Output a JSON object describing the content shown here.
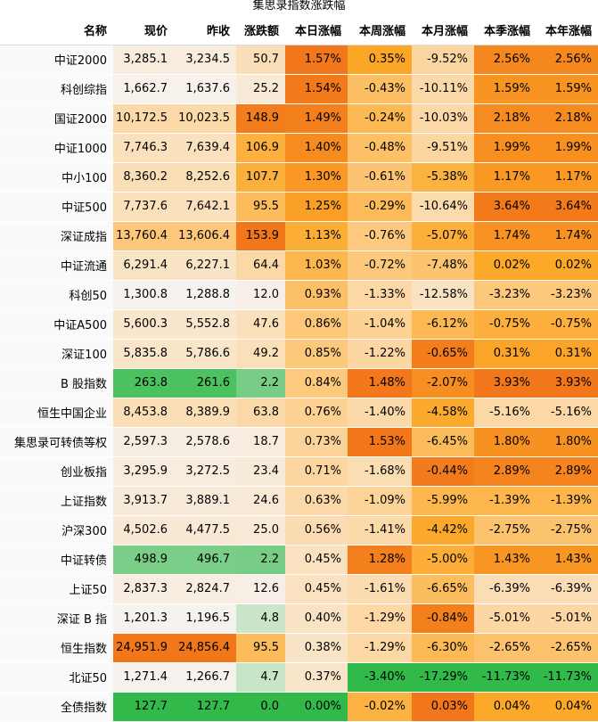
{
  "title": "集思录指数涨跌幅",
  "table": {
    "header": [
      "名称",
      "现价",
      "昨收",
      "涨跌额",
      "本日涨幅",
      "本周涨幅",
      "本月涨幅",
      "本季涨幅",
      "本年涨幅"
    ],
    "rows": [
      [
        "中证2000",
        "3,285.1",
        "3,234.5",
        "50.7",
        "1.57%",
        "0.35%",
        "-9.52%",
        "2.56%",
        "2.56%"
      ],
      [
        "科创综指",
        "1,662.7",
        "1,637.6",
        "25.2",
        "1.54%",
        "-0.43%",
        "-10.11%",
        "1.59%",
        "1.59%"
      ],
      [
        "国证2000",
        "10,172.5",
        "10,023.5",
        "148.9",
        "1.49%",
        "-0.24%",
        "-10.03%",
        "2.18%",
        "2.18%"
      ],
      [
        "中证1000",
        "7,746.3",
        "7,639.4",
        "106.9",
        "1.40%",
        "-0.48%",
        "-9.51%",
        "1.99%",
        "1.99%"
      ],
      [
        "中小100",
        "8,360.2",
        "8,252.6",
        "107.7",
        "1.30%",
        "-0.61%",
        "-5.38%",
        "1.17%",
        "1.17%"
      ],
      [
        "中证500",
        "7,737.6",
        "7,642.1",
        "95.5",
        "1.25%",
        "-0.29%",
        "-10.64%",
        "3.64%",
        "3.64%"
      ],
      [
        "深证成指",
        "13,760.4",
        "13,606.4",
        "153.9",
        "1.13%",
        "-0.76%",
        "-5.07%",
        "1.74%",
        "1.74%"
      ],
      [
        "中证流通",
        "6,291.4",
        "6,227.1",
        "64.4",
        "1.03%",
        "-0.72%",
        "-7.48%",
        "0.02%",
        "0.02%"
      ],
      [
        "科创50",
        "1,300.8",
        "1,288.8",
        "12.0",
        "0.93%",
        "-1.33%",
        "-12.58%",
        "-3.23%",
        "-3.23%"
      ],
      [
        "中证A500",
        "5,600.3",
        "5,552.8",
        "47.6",
        "0.86%",
        "-1.04%",
        "-6.12%",
        "-0.75%",
        "-0.75%"
      ],
      [
        "深证100",
        "5,835.8",
        "5,786.6",
        "49.2",
        "0.85%",
        "-1.22%",
        "-0.65%",
        "0.31%",
        "0.31%"
      ],
      [
        "B 股指数",
        "263.8",
        "261.6",
        "2.2",
        "0.84%",
        "1.48%",
        "-2.07%",
        "3.93%",
        "3.93%"
      ],
      [
        "恒生中国企业",
        "8,453.8",
        "8,389.9",
        "63.8",
        "0.76%",
        "-1.40%",
        "-4.58%",
        "-5.16%",
        "-5.16%"
      ],
      [
        "集思录可转债等权",
        "2,597.3",
        "2,578.6",
        "18.7",
        "0.73%",
        "1.53%",
        "-6.45%",
        "1.80%",
        "1.80%"
      ],
      [
        "创业板指",
        "3,295.9",
        "3,272.5",
        "23.4",
        "0.71%",
        "-1.68%",
        "-0.44%",
        "2.89%",
        "2.89%"
      ],
      [
        "上证指数",
        "3,913.7",
        "3,889.1",
        "24.6",
        "0.63%",
        "-1.09%",
        "-5.99%",
        "-1.39%",
        "-1.39%"
      ],
      [
        "沪深300",
        "4,502.6",
        "4,477.5",
        "25.0",
        "0.56%",
        "-1.41%",
        "-4.42%",
        "-2.75%",
        "-2.75%"
      ],
      [
        "中证转债",
        "498.9",
        "496.7",
        "2.2",
        "0.45%",
        "1.28%",
        "-5.00%",
        "1.43%",
        "1.43%"
      ],
      [
        "上证50",
        "2,837.3",
        "2,824.7",
        "12.6",
        "0.45%",
        "-1.61%",
        "-6.65%",
        "-6.39%",
        "-6.39%"
      ],
      [
        "深证 B 指",
        "1,201.3",
        "1,196.5",
        "4.8",
        "0.40%",
        "-1.29%",
        "-0.84%",
        "-5.01%",
        "-5.01%"
      ],
      [
        "恒生指数",
        "24,951.9",
        "24,856.4",
        "95.5",
        "0.38%",
        "-1.29%",
        "-6.30%",
        "-2.65%",
        "-2.65%"
      ],
      [
        "北证50",
        "1,271.4",
        "1,266.7",
        "4.7",
        "0.37%",
        "-3.40%",
        "-17.29%",
        "-11.73%",
        "-11.73%"
      ],
      [
        "全债指数",
        "127.7",
        "127.7",
        "0.0",
        "0.00%",
        "-0.02%",
        "0.03%",
        "0.04%",
        "0.04%"
      ]
    ]
  }
}
